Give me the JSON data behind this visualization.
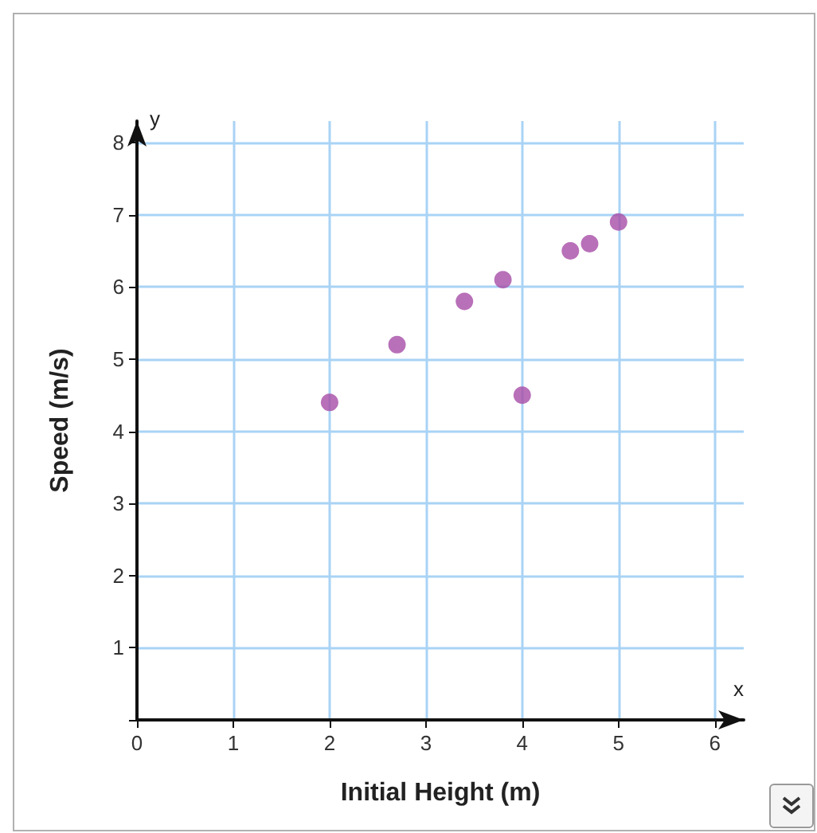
{
  "chart_data": {
    "type": "scatter",
    "xlabel": "Initial Height (m)",
    "ylabel": "Speed (m/s)",
    "x": [
      2.0,
      2.7,
      3.4,
      3.8,
      4.0,
      4.5,
      4.7,
      5.0
    ],
    "series": [
      {
        "color": "#a64ca6",
        "values": [
          4.4,
          5.2,
          5.8,
          6.1,
          4.5,
          6.5,
          6.6,
          6.9
        ]
      }
    ],
    "xlim": [
      0,
      6.3
    ],
    "ylim": [
      0,
      8.3
    ],
    "xticks": [
      0,
      1,
      2,
      3,
      4,
      5,
      6
    ],
    "yticks": [
      {
        "value": 0,
        "label": null
      },
      1,
      2,
      3,
      4,
      5,
      6,
      7,
      8
    ],
    "annotations": [
      "x",
      "y"
    ],
    "grid": true,
    "marker": "circle"
  }
}
